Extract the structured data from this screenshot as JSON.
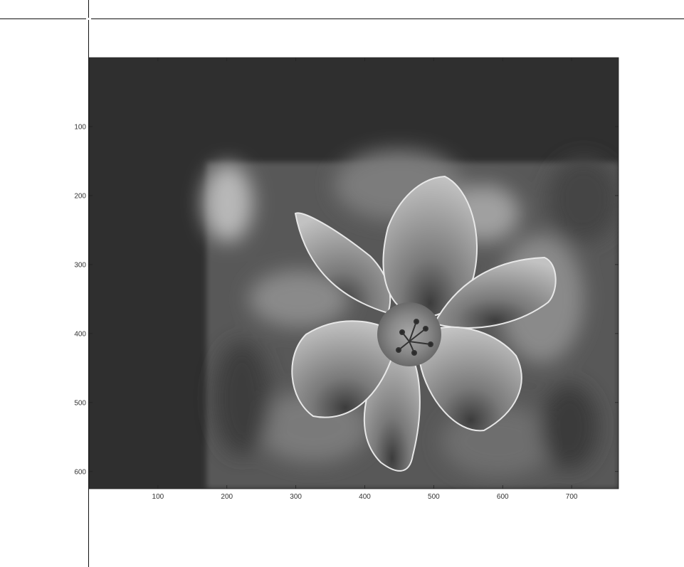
{
  "figure": {
    "type": "image-display",
    "subject": "grayscale-lily-flower-photo",
    "colors": {
      "padding_dark": "#2f2f2f",
      "background_mid": "#5a5a5a",
      "petal_light": "#bdbdbd",
      "axis": "#222222"
    },
    "axes": {
      "x": {
        "range": [
          0,
          768
        ],
        "ticks": [
          100,
          200,
          300,
          400,
          500,
          600,
          700
        ],
        "labels": [
          "100",
          "200",
          "300",
          "400",
          "500",
          "600",
          "700"
        ]
      },
      "y": {
        "range": [
          0,
          625
        ],
        "ticks": [
          100,
          200,
          300,
          400,
          500,
          600
        ],
        "labels": [
          "100",
          "200",
          "300",
          "400",
          "500",
          "600"
        ],
        "reversed": true
      }
    }
  }
}
